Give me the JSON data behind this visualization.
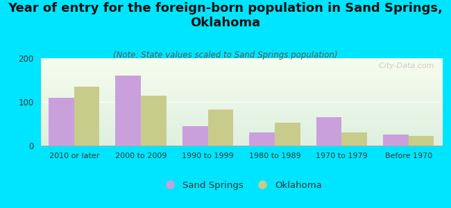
{
  "title": "Year of entry for the foreign-born population in Sand Springs,\nOklahoma",
  "subtitle": "(Note: State values scaled to Sand Springs population)",
  "categories": [
    "2010 or later",
    "2000 to 2009",
    "1990 to 1999",
    "1980 to 1989",
    "1970 to 1979",
    "Before 1970"
  ],
  "sand_springs": [
    110,
    160,
    45,
    30,
    65,
    25
  ],
  "oklahoma": [
    135,
    115,
    82,
    52,
    30,
    22
  ],
  "sand_springs_color": "#c9a0dc",
  "oklahoma_color": "#c8cc8a",
  "background_color": "#00e5ff",
  "ylim": [
    0,
    200
  ],
  "yticks": [
    0,
    100,
    200
  ],
  "legend_labels": [
    "Sand Springs",
    "Oklahoma"
  ],
  "watermark": "  City-Data.com",
  "bar_width": 0.38,
  "title_fontsize": 13,
  "subtitle_fontsize": 8.5
}
